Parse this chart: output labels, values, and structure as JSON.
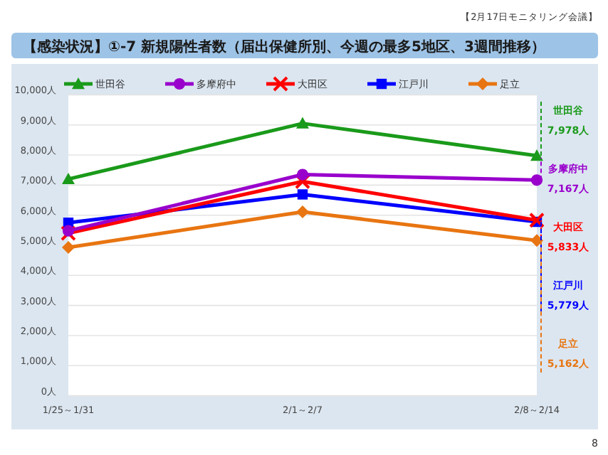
{
  "chart_data": {
    "type": "line",
    "title": "【感染状況】①-7 新規陽性者数（届出保健所別、今週の最多5地区、3週間推移）",
    "subtitle": "【2月17日モニタリング会議】",
    "annotations": [
      "8"
    ],
    "categories": [
      "1/25～1/31",
      "2/1～2/7",
      "2/8～2/14"
    ],
    "ylim": [
      0,
      10000
    ],
    "yticks": [
      {
        "value": 0,
        "label": "0人"
      },
      {
        "value": 1000,
        "label": "1,000人"
      },
      {
        "value": 2000,
        "label": "2,000人"
      },
      {
        "value": 3000,
        "label": "3,000人"
      },
      {
        "value": 4000,
        "label": "4,000人"
      },
      {
        "value": 5000,
        "label": "5,000人"
      },
      {
        "value": 6000,
        "label": "6,000人"
      },
      {
        "value": 7000,
        "label": "7,000人"
      },
      {
        "value": 8000,
        "label": "8,000人"
      },
      {
        "value": 9000,
        "label": "9,000人"
      },
      {
        "value": 10000,
        "label": "10,000人"
      }
    ],
    "grid": "y",
    "legend": "top",
    "series": [
      {
        "name": "世田谷",
        "color": "#1a9a1a",
        "marker": "triangle",
        "values": [
          7200,
          9050,
          7978
        ],
        "value_labels": [
          null,
          null,
          "7,978人"
        ]
      },
      {
        "name": "多摩府中",
        "color": "#9900cc",
        "marker": "circle",
        "values": [
          5480,
          7350,
          7167
        ],
        "value_labels": [
          null,
          null,
          "7,167人"
        ]
      },
      {
        "name": "大田区",
        "color": "#ff0000",
        "marker": "cross",
        "values": [
          5400,
          7120,
          5833
        ],
        "value_labels": [
          null,
          null,
          "5,833人"
        ]
      },
      {
        "name": "江戸川",
        "color": "#0000ff",
        "marker": "square",
        "values": [
          5750,
          6690,
          5779
        ],
        "value_labels": [
          null,
          null,
          "5,779人"
        ]
      },
      {
        "name": "足立",
        "color": "#e87511",
        "marker": "diamond",
        "values": [
          4930,
          6110,
          5162
        ],
        "value_labels": [
          null,
          null,
          "5,162人"
        ]
      }
    ]
  }
}
